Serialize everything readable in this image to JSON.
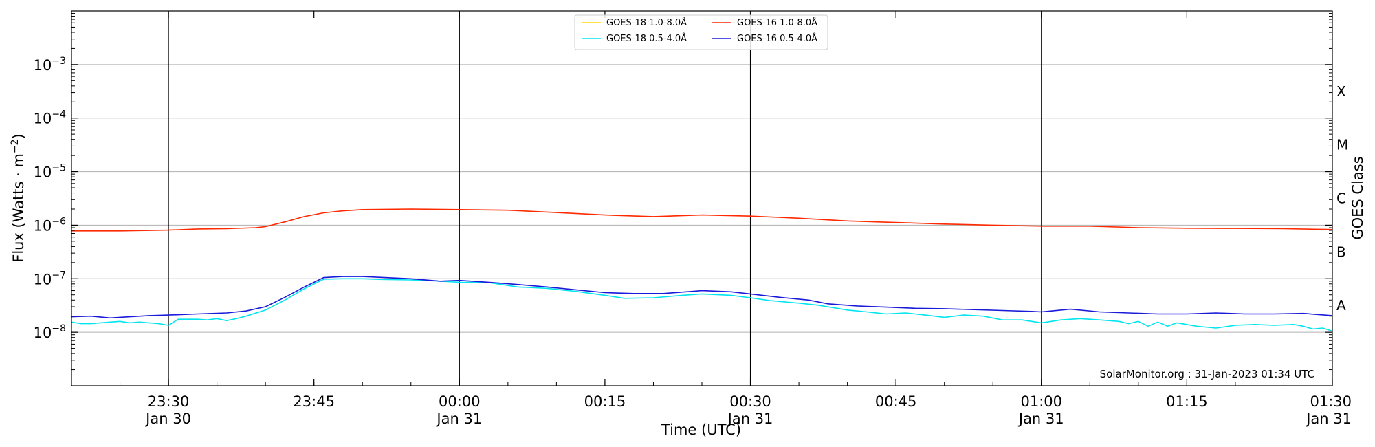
{
  "chart_data": {
    "type": "line",
    "ylabel": "Flux (Watts · m",
    "ylabel_sup": "−2",
    "ylabel_close": ")",
    "xlabel": "Time (UTC)",
    "right_label": "GOES Class",
    "y_scale": "log",
    "ylim": [
      1e-09,
      0.01
    ],
    "xlim": [
      "2023-01-30 23:20",
      "2023-01-31 01:30"
    ],
    "grid": "horizontal",
    "legend_position": "top-center",
    "watermark": "SolarMonitor.org : 31-Jan-2023 01:34 UTC",
    "y_ticks": [
      {
        "value": 1e-08,
        "base": "10",
        "exp": "−8"
      },
      {
        "value": 1e-07,
        "base": "10",
        "exp": "−7"
      },
      {
        "value": 1e-06,
        "base": "10",
        "exp": "−6"
      },
      {
        "value": 1e-05,
        "base": "10",
        "exp": "−5"
      },
      {
        "value": 0.0001,
        "base": "10",
        "exp": "−4"
      },
      {
        "value": 0.001,
        "base": "10",
        "exp": "−3"
      }
    ],
    "x_ticks": [
      {
        "time": "2023-01-30 23:30",
        "line1": "23:30",
        "line2": "Jan 30"
      },
      {
        "time": "2023-01-30 23:45",
        "line1": "23:45",
        "line2": ""
      },
      {
        "time": "2023-01-31 00:00",
        "line1": "00:00",
        "line2": "Jan 31"
      },
      {
        "time": "2023-01-31 00:15",
        "line1": "00:15",
        "line2": ""
      },
      {
        "time": "2023-01-31 00:30",
        "line1": "00:30",
        "line2": "Jan 31"
      },
      {
        "time": "2023-01-31 00:45",
        "line1": "00:45",
        "line2": ""
      },
      {
        "time": "2023-01-31 01:00",
        "line1": "01:00",
        "line2": "Jan 31"
      },
      {
        "time": "2023-01-31 01:15",
        "line1": "01:15",
        "line2": ""
      },
      {
        "time": "2023-01-31 01:30",
        "line1": "01:30",
        "line2": "Jan 31"
      }
    ],
    "vertical_lines": [
      "2023-01-30 23:30",
      "2023-01-31 00:00",
      "2023-01-31 00:30",
      "2023-01-31 01:00"
    ],
    "goes_classes": [
      {
        "label": "A",
        "value": 1e-08
      },
      {
        "label": "B",
        "value": 1e-07
      },
      {
        "label": "C",
        "value": 1e-06
      },
      {
        "label": "M",
        "value": 1e-05
      },
      {
        "label": "X",
        "value": 0.0001
      }
    ],
    "series": [
      {
        "name": "GOES-18 1.0-8.0Å",
        "color": "#ffd700",
        "x": [],
        "y": []
      },
      {
        "name": "GOES-18 0.5-4.0Å",
        "color": "#00e5ee",
        "x": [
          "2023-01-30 23:20",
          "2023-01-30 23:21",
          "2023-01-30 23:22",
          "2023-01-30 23:23",
          "2023-01-30 23:24",
          "2023-01-30 23:25",
          "2023-01-30 23:26",
          "2023-01-30 23:27",
          "2023-01-30 23:28",
          "2023-01-30 23:29",
          "2023-01-30 23:30",
          "2023-01-30 23:31",
          "2023-01-30 23:32",
          "2023-01-30 23:33",
          "2023-01-30 23:34",
          "2023-01-30 23:35",
          "2023-01-30 23:36",
          "2023-01-30 23:37",
          "2023-01-30 23:38",
          "2023-01-30 23:40",
          "2023-01-30 23:42",
          "2023-01-30 23:44",
          "2023-01-30 23:46",
          "2023-01-30 23:48",
          "2023-01-30 23:50",
          "2023-01-30 23:52",
          "2023-01-30 23:55",
          "2023-01-30 23:58",
          "2023-01-31 00:00",
          "2023-01-31 00:03",
          "2023-01-31 00:06",
          "2023-01-31 00:09",
          "2023-01-31 00:12",
          "2023-01-31 00:15",
          "2023-01-31 00:17",
          "2023-01-31 00:20",
          "2023-01-31 00:23",
          "2023-01-31 00:25",
          "2023-01-31 00:28",
          "2023-01-31 00:30",
          "2023-01-31 00:32",
          "2023-01-31 00:35",
          "2023-01-31 00:37",
          "2023-01-31 00:40",
          "2023-01-31 00:42",
          "2023-01-31 00:44",
          "2023-01-31 00:46",
          "2023-01-31 00:48",
          "2023-01-31 00:50",
          "2023-01-31 00:52",
          "2023-01-31 00:54",
          "2023-01-31 00:56",
          "2023-01-31 00:58",
          "2023-01-31 01:00",
          "2023-01-31 01:02",
          "2023-01-31 01:04",
          "2023-01-31 01:06",
          "2023-01-31 01:08",
          "2023-01-31 01:09",
          "2023-01-31 01:10",
          "2023-01-31 01:11",
          "2023-01-31 01:12",
          "2023-01-31 01:13",
          "2023-01-31 01:14",
          "2023-01-31 01:16",
          "2023-01-31 01:18",
          "2023-01-31 01:20",
          "2023-01-31 01:22",
          "2023-01-31 01:24",
          "2023-01-31 01:26",
          "2023-01-31 01:27",
          "2023-01-31 01:28",
          "2023-01-31 01:29",
          "2023-01-31 01:30"
        ],
        "y": [
          1.55e-08,
          1.45e-08,
          1.45e-08,
          1.5e-08,
          1.55e-08,
          1.6e-08,
          1.5e-08,
          1.55e-08,
          1.5e-08,
          1.45e-08,
          1.35e-08,
          1.75e-08,
          1.75e-08,
          1.75e-08,
          1.7e-08,
          1.8e-08,
          1.65e-08,
          1.8e-08,
          2e-08,
          2.6e-08,
          4e-08,
          6.5e-08,
          9.8e-08,
          1e-07,
          1e-07,
          9.7e-08,
          9.5e-08,
          9e-08,
          8.6e-08,
          8.5e-08,
          7e-08,
          6.6e-08,
          5.8e-08,
          4.9e-08,
          4.3e-08,
          4.4e-08,
          4.9e-08,
          5.2e-08,
          4.9e-08,
          4.4e-08,
          3.9e-08,
          3.5e-08,
          3.2e-08,
          2.6e-08,
          2.4e-08,
          2.2e-08,
          2.3e-08,
          2.1e-08,
          1.9e-08,
          2.1e-08,
          2e-08,
          1.7e-08,
          1.7e-08,
          1.5e-08,
          1.7e-08,
          1.8e-08,
          1.7e-08,
          1.6e-08,
          1.45e-08,
          1.6e-08,
          1.3e-08,
          1.55e-08,
          1.3e-08,
          1.5e-08,
          1.3e-08,
          1.2e-08,
          1.35e-08,
          1.4e-08,
          1.35e-08,
          1.4e-08,
          1.3e-08,
          1.15e-08,
          1.2e-08,
          1.05e-08
        ]
      },
      {
        "name": "GOES-16 1.0-8.0Å",
        "color": "#ff2a00",
        "x": [
          "2023-01-30 23:20",
          "2023-01-30 23:25",
          "2023-01-30 23:30",
          "2023-01-30 23:33",
          "2023-01-30 23:36",
          "2023-01-30 23:39",
          "2023-01-30 23:40",
          "2023-01-30 23:42",
          "2023-01-30 23:44",
          "2023-01-30 23:46",
          "2023-01-30 23:48",
          "2023-01-30 23:50",
          "2023-01-30 23:55",
          "2023-01-31 00:00",
          "2023-01-31 00:05",
          "2023-01-31 00:10",
          "2023-01-31 00:15",
          "2023-01-31 00:20",
          "2023-01-31 00:25",
          "2023-01-31 00:30",
          "2023-01-31 00:35",
          "2023-01-31 00:40",
          "2023-01-31 00:45",
          "2023-01-31 00:50",
          "2023-01-31 00:55",
          "2023-01-31 01:00",
          "2023-01-31 01:05",
          "2023-01-31 01:10",
          "2023-01-31 01:15",
          "2023-01-31 01:20",
          "2023-01-31 01:25",
          "2023-01-31 01:30"
        ],
        "y": [
          7.8e-07,
          7.8e-07,
          8.1e-07,
          8.5e-07,
          8.6e-07,
          9e-07,
          9.4e-07,
          1.15e-06,
          1.45e-06,
          1.7e-06,
          1.85e-06,
          1.95e-06,
          2e-06,
          1.95e-06,
          1.9e-06,
          1.72e-06,
          1.55e-06,
          1.45e-06,
          1.55e-06,
          1.48e-06,
          1.35e-06,
          1.2e-06,
          1.12e-06,
          1.05e-06,
          1e-06,
          9.6e-07,
          9.6e-07,
          9e-07,
          8.8e-07,
          8.7e-07,
          8.6e-07,
          8.3e-07
        ]
      },
      {
        "name": "GOES-16 0.5-4.0Å",
        "color": "#1a1adb",
        "x": [
          "2023-01-30 23:20",
          "2023-01-30 23:22",
          "2023-01-30 23:24",
          "2023-01-30 23:26",
          "2023-01-30 23:28",
          "2023-01-30 23:30",
          "2023-01-30 23:33",
          "2023-01-30 23:36",
          "2023-01-30 23:38",
          "2023-01-30 23:40",
          "2023-01-30 23:42",
          "2023-01-30 23:44",
          "2023-01-30 23:46",
          "2023-01-30 23:48",
          "2023-01-30 23:50",
          "2023-01-30 23:55",
          "2023-01-30 23:58",
          "2023-01-31 00:00",
          "2023-01-31 00:03",
          "2023-01-31 00:06",
          "2023-01-31 00:09",
          "2023-01-31 00:12",
          "2023-01-31 00:15",
          "2023-01-31 00:18",
          "2023-01-31 00:21",
          "2023-01-31 00:25",
          "2023-01-31 00:28",
          "2023-01-31 00:30",
          "2023-01-31 00:33",
          "2023-01-31 00:36",
          "2023-01-31 00:38",
          "2023-01-31 00:41",
          "2023-01-31 00:44",
          "2023-01-31 00:47",
          "2023-01-31 00:50",
          "2023-01-31 00:53",
          "2023-01-31 00:56",
          "2023-01-31 00:59",
          "2023-01-31 01:00",
          "2023-01-31 01:03",
          "2023-01-31 01:06",
          "2023-01-31 01:09",
          "2023-01-31 01:12",
          "2023-01-31 01:15",
          "2023-01-31 01:18",
          "2023-01-31 01:21",
          "2023-01-31 01:24",
          "2023-01-31 01:27",
          "2023-01-31 01:30"
        ],
        "y": [
          1.95e-08,
          2e-08,
          1.85e-08,
          1.95e-08,
          2.05e-08,
          2.1e-08,
          2.2e-08,
          2.3e-08,
          2.5e-08,
          3e-08,
          4.5e-08,
          7e-08,
          1.05e-07,
          1.1e-07,
          1.1e-07,
          1e-07,
          9e-08,
          9.3e-08,
          8.6e-08,
          7.8e-08,
          7e-08,
          6.2e-08,
          5.5e-08,
          5.3e-08,
          5.3e-08,
          6e-08,
          5.7e-08,
          5.2e-08,
          4.5e-08,
          4e-08,
          3.4e-08,
          3.1e-08,
          2.95e-08,
          2.8e-08,
          2.75e-08,
          2.65e-08,
          2.55e-08,
          2.45e-08,
          2.4e-08,
          2.7e-08,
          2.4e-08,
          2.3e-08,
          2.2e-08,
          2.2e-08,
          2.3e-08,
          2.2e-08,
          2.2e-08,
          2.25e-08,
          2.05e-08
        ]
      }
    ]
  }
}
